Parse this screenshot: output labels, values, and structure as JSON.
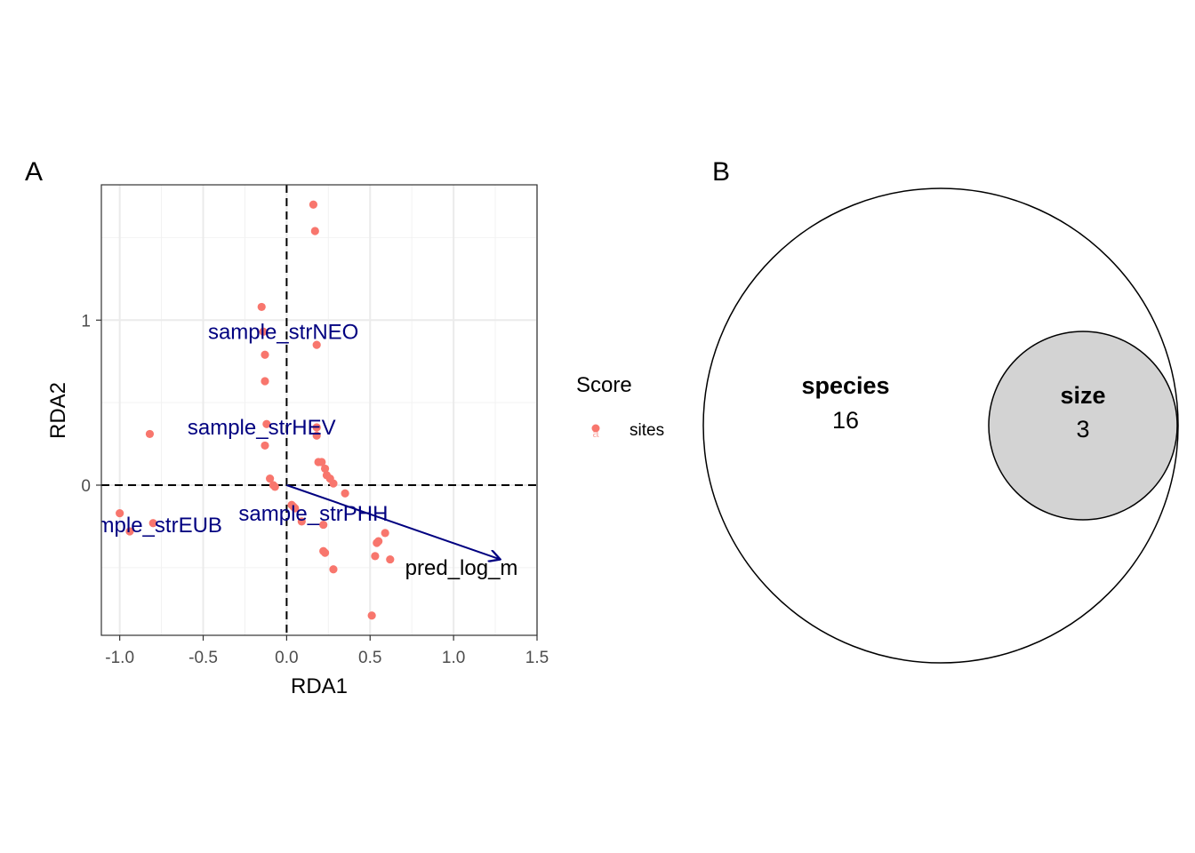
{
  "chart_data": [
    {
      "panel_label": "A",
      "type": "scatter",
      "title": "",
      "xlabel": "RDA1",
      "ylabel": "RDA2",
      "xlim": [
        -1.11,
        1.5
      ],
      "ylim": [
        -0.91,
        1.82
      ],
      "x_ticks": [
        -1.0,
        -0.5,
        0.0,
        0.5,
        1.0,
        1.5
      ],
      "x_tick_labels": [
        "-1.0",
        "-0.5",
        "0.0",
        "0.5",
        "1.0",
        "1.5"
      ],
      "y_ticks": [
        0,
        1
      ],
      "y_tick_labels": [
        "0",
        "1"
      ],
      "grid": true,
      "reference_lines": {
        "x": 0,
        "y": 0,
        "style": "dashed"
      },
      "legend": {
        "title": "Score",
        "position": "right",
        "entries": [
          {
            "label": "sites",
            "key_glyph": "a",
            "color": "#F8766D"
          }
        ]
      },
      "series": [
        {
          "name": "sites",
          "color": "#F8766D",
          "points": [
            [
              0.16,
              1.7
            ],
            [
              0.17,
              1.54
            ],
            [
              -0.15,
              1.08
            ],
            [
              -0.14,
              0.93
            ],
            [
              0.18,
              0.85
            ],
            [
              -0.13,
              0.79
            ],
            [
              -0.13,
              0.63
            ],
            [
              -0.12,
              0.37
            ],
            [
              0.18,
              0.35
            ],
            [
              0.18,
              0.3
            ],
            [
              -0.13,
              0.24
            ],
            [
              -0.82,
              0.31
            ],
            [
              0.19,
              0.14
            ],
            [
              0.21,
              0.14
            ],
            [
              0.23,
              0.1
            ],
            [
              0.24,
              0.06
            ],
            [
              0.26,
              0.04
            ],
            [
              0.28,
              0.01
            ],
            [
              0.35,
              -0.05
            ],
            [
              -0.1,
              0.04
            ],
            [
              -0.08,
              0.0
            ],
            [
              -0.07,
              -0.01
            ],
            [
              0.03,
              -0.12
            ],
            [
              0.04,
              -0.13
            ],
            [
              0.05,
              -0.14
            ],
            [
              0.09,
              -0.22
            ],
            [
              0.22,
              -0.24
            ],
            [
              0.59,
              -0.29
            ],
            [
              0.55,
              -0.34
            ],
            [
              0.54,
              -0.35
            ],
            [
              0.22,
              -0.4
            ],
            [
              0.23,
              -0.41
            ],
            [
              0.53,
              -0.43
            ],
            [
              0.62,
              -0.45
            ],
            [
              0.28,
              -0.51
            ],
            [
              0.51,
              -0.79
            ],
            [
              -1.0,
              -0.17
            ],
            [
              -0.8,
              -0.23
            ],
            [
              -0.94,
              -0.28
            ]
          ]
        }
      ],
      "species_labels": [
        {
          "text": "sample_strNEO",
          "x": -0.02,
          "y": 0.92
        },
        {
          "text": "sample_strHEV",
          "x": -0.15,
          "y": 0.34
        },
        {
          "text": "sample_strEUB",
          "x": -0.83,
          "y": -0.25
        },
        {
          "text": "sample_strPHH",
          "x": 0.16,
          "y": -0.18
        }
      ],
      "species_color": "#000080",
      "arrows": [
        {
          "label": "pred_log_m",
          "x_end": 1.28,
          "y_end": -0.45,
          "label_x": 0.71,
          "label_y": -0.51,
          "color": "#000080"
        }
      ]
    },
    {
      "panel_label": "B",
      "type": "venn",
      "sets": [
        {
          "name": "species",
          "count": "16",
          "fill": "#ffffff"
        },
        {
          "name": "size",
          "count": "3",
          "fill": "#d3d3d3",
          "nested_in": "species"
        }
      ]
    }
  ]
}
